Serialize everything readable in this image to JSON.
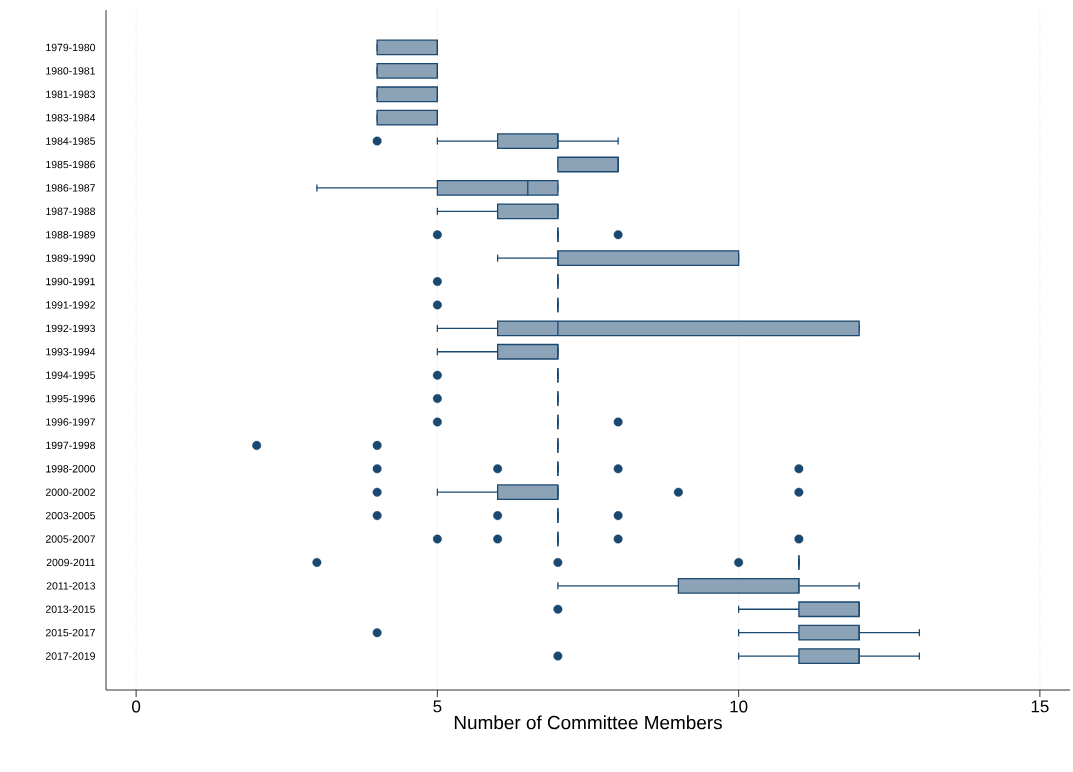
{
  "chart_data": {
    "type": "box",
    "orientation": "horizontal",
    "xlabel": "Number of Committee Members",
    "categories": [
      "1979-1980",
      "1980-1981",
      "1981-1983",
      "1983-1984",
      "1984-1985",
      "1985-1986",
      "1986-1987",
      "1987-1988",
      "1988-1989",
      "1989-1990",
      "1990-1991",
      "1991-1992",
      "1992-1993",
      "1993-1994",
      "1994-1995",
      "1995-1996",
      "1996-1997",
      "1997-1998",
      "1998-2000",
      "2000-2002",
      "2003-2005",
      "2005-2007",
      "2009-2011",
      "2011-2013",
      "2013-2015",
      "2015-2017",
      "2017-2019"
    ],
    "xlim": [
      -0.5,
      15.5
    ],
    "xticks": [
      0,
      5,
      10,
      15
    ],
    "grid": "x",
    "marker": "circle",
    "series": [
      {
        "color": "#1a4870",
        "boxes": [
          {
            "low": 4,
            "q1": 4,
            "median": 5,
            "q3": 5,
            "high": 5
          },
          {
            "low": 4,
            "q1": 4,
            "median": 5,
            "q3": 5,
            "high": 5
          },
          {
            "low": 4,
            "q1": 4,
            "median": 5,
            "q3": 5,
            "high": 5
          },
          {
            "low": 4,
            "q1": 4,
            "median": 5,
            "q3": 5,
            "high": 5
          },
          {
            "low": 5,
            "q1": 6,
            "median": 7,
            "q3": 7,
            "high": 8,
            "outliers": [
              4
            ]
          },
          {
            "low": 7,
            "q1": 7,
            "median": 8,
            "q3": 8,
            "high": 8
          },
          {
            "low": 3,
            "q1": 5,
            "median": 6.5,
            "q3": 7,
            "high": 7
          },
          {
            "low": 5,
            "q1": 6,
            "median": 7,
            "q3": 7,
            "high": 7
          },
          {
            "low": 7,
            "q1": 7,
            "median": 7,
            "q3": 7,
            "high": 7,
            "outliers": [
              5,
              8
            ]
          },
          {
            "low": 6,
            "q1": 7,
            "median": 7,
            "q3": 10,
            "high": 10
          },
          {
            "low": 7,
            "q1": 7,
            "median": 7,
            "q3": 7,
            "high": 7,
            "outliers": [
              5
            ]
          },
          {
            "low": 7,
            "q1": 7,
            "median": 7,
            "q3": 7,
            "high": 7,
            "outliers": [
              5
            ]
          },
          {
            "low": 5,
            "q1": 6,
            "median": 7,
            "q3": 12,
            "high": 12
          },
          {
            "low": 5,
            "q1": 6,
            "median": 7,
            "q3": 7,
            "high": 7
          },
          {
            "low": 7,
            "q1": 7,
            "median": 7,
            "q3": 7,
            "high": 7,
            "outliers": [
              5
            ]
          },
          {
            "low": 7,
            "q1": 7,
            "median": 7,
            "q3": 7,
            "high": 7,
            "outliers": [
              5
            ]
          },
          {
            "low": 7,
            "q1": 7,
            "median": 7,
            "q3": 7,
            "high": 7,
            "outliers": [
              5,
              8
            ]
          },
          {
            "low": 7,
            "q1": 7,
            "median": 7,
            "q3": 7,
            "high": 7,
            "outliers": [
              2,
              4
            ]
          },
          {
            "low": 7,
            "q1": 7,
            "median": 7,
            "q3": 7,
            "high": 7,
            "outliers": [
              4,
              6,
              8,
              11
            ]
          },
          {
            "low": 5,
            "q1": 6,
            "median": 7,
            "q3": 7,
            "high": 7,
            "outliers": [
              4,
              9,
              11
            ]
          },
          {
            "low": 7,
            "q1": 7,
            "median": 7,
            "q3": 7,
            "high": 7,
            "outliers": [
              4,
              6,
              8
            ]
          },
          {
            "low": 7,
            "q1": 7,
            "median": 7,
            "q3": 7,
            "high": 7,
            "outliers": [
              5,
              6,
              8,
              11
            ]
          },
          {
            "low": 11,
            "q1": 11,
            "median": 11,
            "q3": 11,
            "high": 11,
            "outliers": [
              3,
              7,
              10
            ]
          },
          {
            "low": 7,
            "q1": 9,
            "median": 11,
            "q3": 11,
            "high": 12
          },
          {
            "low": 10,
            "q1": 11,
            "median": 12,
            "q3": 12,
            "high": 12,
            "outliers": [
              7
            ]
          },
          {
            "low": 10,
            "q1": 11,
            "median": 12,
            "q3": 12,
            "high": 13,
            "outliers": [
              4
            ]
          },
          {
            "low": 10,
            "q1": 11,
            "median": 12,
            "q3": 12,
            "high": 13,
            "outliers": [
              7
            ]
          }
        ]
      }
    ]
  }
}
